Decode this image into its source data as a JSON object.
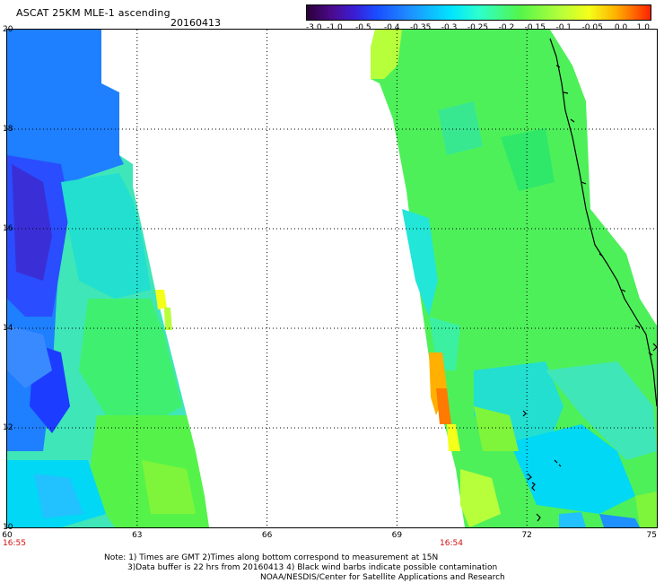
{
  "title": "ASCAT 25KM MLE-1 ascending",
  "date": "20160413",
  "colorbar": {
    "ticks": [
      "-3.0",
      "-1.0",
      "-0.5",
      "-0.4",
      "-0.35",
      "-0.3",
      "-0.25",
      "-0.2",
      "-0.15",
      "-0.1",
      "-0.05",
      "0.0",
      "1.0"
    ],
    "colors": [
      "#2a0038",
      "#4b0a8a",
      "#3a1fd6",
      "#1a4bff",
      "#1e90ff",
      "#00e5ff",
      "#2cffcf",
      "#54f54a",
      "#b7ff3a",
      "#f4ff1a",
      "#ffb000",
      "#ff2200"
    ]
  },
  "axes": {
    "lat_labels": [
      "20",
      "18",
      "16",
      "14",
      "12",
      "10"
    ],
    "lon_labels": [
      "60",
      "63",
      "66",
      "69",
      "72",
      "75"
    ]
  },
  "pass_times": [
    "16:55",
    "16:54"
  ],
  "notes": [
    "Note: 1) Times are GMT 2)Times along bottom correspond to measurement at 15N",
    "3)Data buffer is 22 hrs from 20160413 4) Black wind barbs indicate possible contamination",
    "NOAA/NESDIS/Center for Satellite Applications and Research"
  ],
  "colors": {
    "pass_time": "#d01010",
    "grid": "#000000"
  }
}
